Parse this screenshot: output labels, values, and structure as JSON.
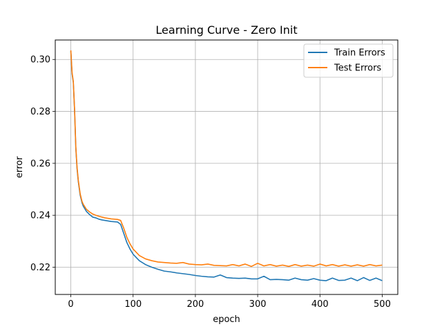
{
  "chart_data": {
    "type": "line",
    "title": "Learning Curve - Zero Init",
    "xlabel": "epoch",
    "ylabel": "error",
    "xlim": [
      -25,
      525
    ],
    "ylim": [
      0.2095,
      0.3075
    ],
    "xticks": [
      0,
      100,
      200,
      300,
      400,
      500
    ],
    "yticks": [
      0.22,
      0.24,
      0.26,
      0.28,
      0.3
    ],
    "xtick_labels": [
      "0",
      "100",
      "200",
      "300",
      "400",
      "500"
    ],
    "ytick_labels": [
      "0.22",
      "0.24",
      "0.26",
      "0.28",
      "0.30"
    ],
    "grid": true,
    "legend_position": "top-right",
    "series": [
      {
        "name": "Train Errors",
        "color": "#1f77b4",
        "x": [
          0,
          2,
          4,
          6,
          8,
          10,
          12,
          15,
          18,
          20,
          25,
          30,
          35,
          40,
          45,
          50,
          55,
          60,
          65,
          70,
          75,
          80,
          85,
          90,
          95,
          100,
          110,
          120,
          130,
          140,
          150,
          160,
          170,
          180,
          190,
          200,
          210,
          220,
          230,
          240,
          250,
          260,
          270,
          280,
          290,
          300,
          310,
          320,
          330,
          340,
          350,
          360,
          370,
          380,
          390,
          400,
          410,
          420,
          430,
          440,
          450,
          460,
          470,
          480,
          490,
          500
        ],
        "values": [
          0.3032,
          0.2945,
          0.2912,
          0.2805,
          0.266,
          0.258,
          0.253,
          0.2478,
          0.2448,
          0.2435,
          0.2415,
          0.2403,
          0.2393,
          0.239,
          0.2385,
          0.2382,
          0.238,
          0.2378,
          0.2376,
          0.2375,
          0.2374,
          0.2365,
          0.233,
          0.2295,
          0.227,
          0.225,
          0.2225,
          0.221,
          0.22,
          0.2192,
          0.2185,
          0.2182,
          0.2178,
          0.2175,
          0.2172,
          0.2168,
          0.2165,
          0.2163,
          0.2162,
          0.217,
          0.216,
          0.2158,
          0.2157,
          0.2158,
          0.2155,
          0.2155,
          0.2165,
          0.2152,
          0.2153,
          0.2152,
          0.215,
          0.2158,
          0.2152,
          0.215,
          0.2156,
          0.215,
          0.2148,
          0.2158,
          0.2149,
          0.215,
          0.2158,
          0.2148,
          0.216,
          0.2149,
          0.2158,
          0.2148
        ]
      },
      {
        "name": "Test Errors",
        "color": "#ff7f0e",
        "x": [
          0,
          2,
          4,
          6,
          8,
          10,
          12,
          15,
          18,
          20,
          25,
          30,
          35,
          40,
          45,
          50,
          55,
          60,
          65,
          70,
          75,
          80,
          85,
          90,
          95,
          100,
          110,
          120,
          130,
          140,
          150,
          160,
          170,
          180,
          190,
          200,
          210,
          220,
          230,
          240,
          250,
          260,
          270,
          280,
          290,
          300,
          310,
          320,
          330,
          340,
          350,
          360,
          370,
          380,
          390,
          400,
          410,
          420,
          430,
          440,
          450,
          460,
          470,
          480,
          490,
          500
        ],
        "values": [
          0.3035,
          0.295,
          0.2915,
          0.281,
          0.2665,
          0.2585,
          0.2535,
          0.2483,
          0.2453,
          0.2442,
          0.2423,
          0.2413,
          0.2405,
          0.24,
          0.2396,
          0.2393,
          0.239,
          0.2388,
          0.2386,
          0.2385,
          0.2384,
          0.238,
          0.235,
          0.2315,
          0.229,
          0.227,
          0.2245,
          0.2232,
          0.2225,
          0.222,
          0.2218,
          0.2216,
          0.2215,
          0.2218,
          0.2212,
          0.221,
          0.2209,
          0.2212,
          0.2207,
          0.2206,
          0.2205,
          0.221,
          0.2205,
          0.2212,
          0.2203,
          0.2215,
          0.2205,
          0.221,
          0.2204,
          0.2208,
          0.2203,
          0.221,
          0.2204,
          0.2208,
          0.2204,
          0.2212,
          0.2205,
          0.221,
          0.2204,
          0.2209,
          0.2204,
          0.2209,
          0.2204,
          0.221,
          0.2205,
          0.2208
        ]
      }
    ]
  }
}
